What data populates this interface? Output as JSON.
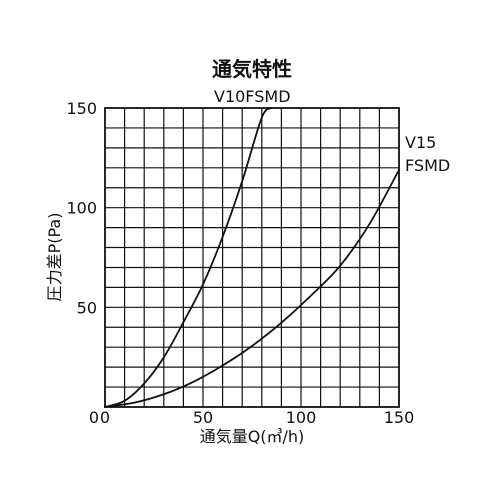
{
  "chart_data": {
    "type": "line",
    "title": "通気特性",
    "xlabel": "通気量Q(㎥/h)",
    "ylabel": "圧力差P(Pa)",
    "xlim": [
      0,
      150
    ],
    "ylim": [
      0,
      150
    ],
    "x_ticks": [
      0,
      50,
      100,
      150
    ],
    "y_ticks": [
      50,
      100,
      150
    ],
    "grid": true,
    "series": [
      {
        "name": "V10FSMD",
        "x": [
          0,
          10,
          20,
          30,
          40,
          50,
          60,
          70,
          80,
          85
        ],
        "y": [
          0,
          3.1,
          11.8,
          24.9,
          42.5,
          61.5,
          85.3,
          113.3,
          145.2,
          150
        ]
      },
      {
        "name": "V15 FSMD",
        "label_lines": [
          "V15",
          "FSMD"
        ],
        "x": [
          0,
          15,
          30,
          45,
          60,
          75,
          90,
          105,
          120,
          135,
          150
        ],
        "y": [
          0,
          2.2,
          6.4,
          12.6,
          20.8,
          30.6,
          42.3,
          55.8,
          70.9,
          91.9,
          119
        ]
      }
    ]
  }
}
